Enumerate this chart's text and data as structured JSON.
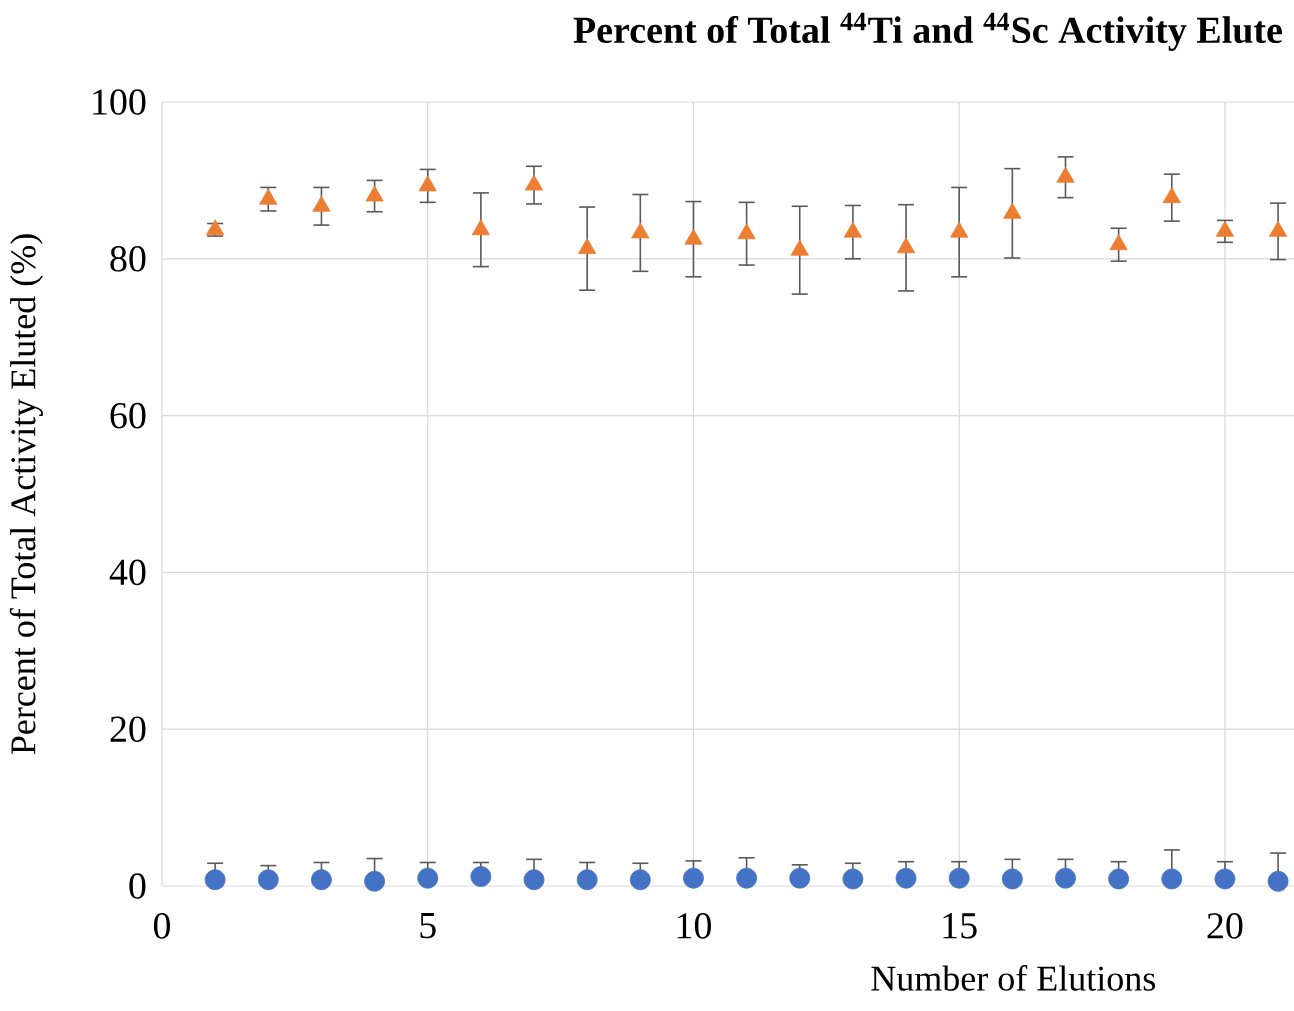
{
  "chart_data": {
    "type": "scatter",
    "title": "Percent of Total $^{44}$Ti and $^{44}$Sc Activity Elute",
    "xlabel": "Number of Elutions",
    "ylabel": "Percent of Total Activity Eluted (%)",
    "xlim": [
      0,
      21.3
    ],
    "xticks": [
      0,
      5,
      10,
      15,
      20
    ],
    "ylim": [
      0,
      100
    ],
    "yticks": [
      0,
      20,
      40,
      60,
      80,
      100
    ],
    "grid": true,
    "x": [
      1,
      2,
      3,
      4,
      5,
      6,
      7,
      8,
      9,
      10,
      11,
      12,
      13,
      14,
      15,
      16,
      17,
      18,
      19,
      20,
      21
    ],
    "series": [
      {
        "color": "#4472c4",
        "marker": "circle",
        "values": [
          0.8,
          0.8,
          0.8,
          0.6,
          1.0,
          1.2,
          0.8,
          0.8,
          0.8,
          1.0,
          1.0,
          1.0,
          0.9,
          1.0,
          1.0,
          0.9,
          1.0,
          0.9,
          0.9,
          0.9,
          0.6
        ],
        "errors": [
          [
            0.8,
            2.9
          ],
          [
            0.8,
            2.6
          ],
          [
            0.8,
            3.0
          ],
          [
            0.6,
            3.5
          ],
          [
            1.0,
            3.0
          ],
          [
            1.2,
            3.0
          ],
          [
            0.8,
            3.4
          ],
          [
            0.8,
            3.0
          ],
          [
            0.8,
            2.9
          ],
          [
            1.0,
            3.2
          ],
          [
            1.0,
            3.6
          ],
          [
            1.0,
            2.7
          ],
          [
            0.9,
            2.9
          ],
          [
            1.0,
            3.1
          ],
          [
            1.0,
            3.1
          ],
          [
            0.9,
            3.4
          ],
          [
            1.0,
            3.4
          ],
          [
            0.9,
            3.1
          ],
          [
            0.9,
            4.6
          ],
          [
            0.9,
            3.1
          ],
          [
            0.6,
            4.2
          ]
        ]
      },
      {
        "color": "#ed7d31",
        "marker": "triangle",
        "values": [
          83.7,
          87.6,
          86.7,
          88.0,
          89.3,
          83.7,
          89.4,
          81.3,
          83.3,
          82.5,
          83.2,
          81.1,
          83.4,
          81.4,
          83.4,
          85.8,
          90.4,
          81.8,
          87.8,
          83.5,
          83.5
        ],
        "errors": [
          0.8,
          1.5,
          2.4,
          2.0,
          2.1,
          4.7,
          2.4,
          5.3,
          4.9,
          4.8,
          4.0,
          5.6,
          3.4,
          5.5,
          5.7,
          5.7,
          2.6,
          2.1,
          3.0,
          1.4,
          3.6
        ]
      }
    ]
  }
}
